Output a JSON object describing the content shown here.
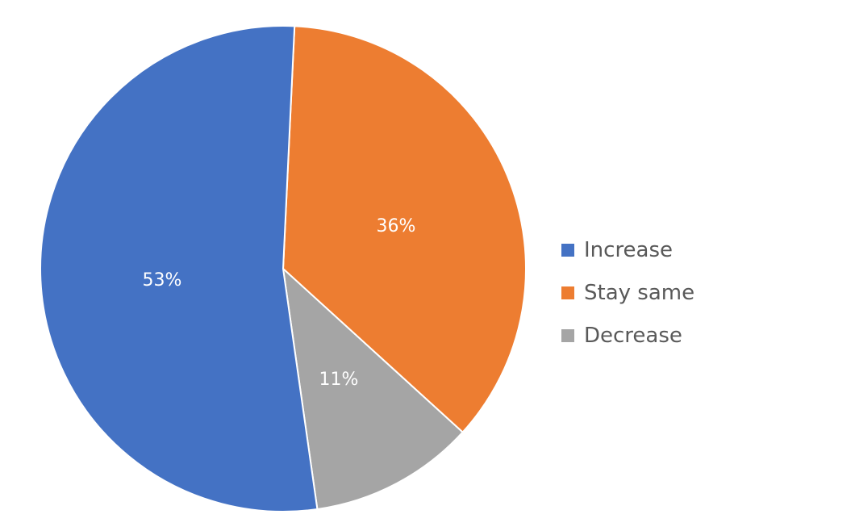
{
  "chart_data": {
    "type": "pie",
    "title": "",
    "categories": [
      "Increase",
      "Stay same",
      "Decrease"
    ],
    "values": [
      53,
      36,
      11
    ],
    "labels": [
      "53%",
      "36%",
      "11%"
    ],
    "colors": [
      "#4472C4",
      "#ED7D31",
      "#A5A5A5"
    ],
    "legend_position": "right"
  },
  "legend": [
    {
      "label": "Increase",
      "color": "#4472C4"
    },
    {
      "label": "Stay same",
      "color": "#ED7D31"
    },
    {
      "label": "Decrease",
      "color": "#A5A5A5"
    }
  ]
}
